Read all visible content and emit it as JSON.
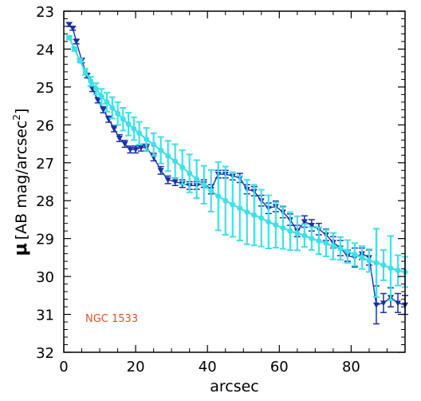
{
  "chart_data": {
    "type": "line",
    "xlabel": "arcsec",
    "ylabel_symbol": "μ",
    "ylabel_text": "[AB mag/arcsec",
    "ylabel_sup": "2",
    "ylabel_close": "]",
    "xlim": [
      0,
      95
    ],
    "ylim": [
      32,
      23
    ],
    "inverted_y": true,
    "grid": false,
    "annotation": "NGC 1533",
    "xticks": [
      0,
      20,
      40,
      60,
      80
    ],
    "yticks": [
      23,
      24,
      25,
      26,
      27,
      28,
      29,
      30,
      31,
      32
    ],
    "colors": {
      "observed": "#1a2fa8",
      "model": "#3fe0e6",
      "annotation": "#e8502a",
      "axis": "#000000"
    },
    "series": [
      {
        "key": "observed",
        "x": [
          1.5,
          2.5,
          3.5,
          5,
          6.5,
          8,
          9.5,
          11,
          12.5,
          14,
          15.5,
          17,
          18.5,
          20,
          21.5,
          23,
          25,
          27,
          29,
          31,
          33,
          35,
          37,
          39,
          41,
          43,
          45,
          47,
          49,
          51,
          53,
          55,
          57,
          59,
          61,
          63,
          65,
          67,
          69,
          71,
          73,
          75,
          77,
          79,
          81,
          83,
          85,
          87,
          89,
          91,
          93,
          95
        ],
        "y": [
          23.35,
          23.45,
          23.8,
          24.3,
          24.7,
          25.05,
          25.35,
          25.6,
          25.85,
          26.1,
          26.35,
          26.5,
          26.65,
          26.65,
          26.6,
          26.6,
          26.85,
          27.2,
          27.45,
          27.5,
          27.55,
          27.6,
          27.6,
          27.55,
          27.7,
          27.3,
          27.3,
          27.35,
          27.4,
          27.7,
          27.75,
          28,
          28.2,
          28.15,
          28.3,
          28.5,
          28.8,
          28.55,
          28.65,
          28.75,
          28.9,
          29.1,
          29.25,
          29.45,
          29.5,
          29.4,
          29.5,
          30.75,
          30.7,
          30.55,
          30.7,
          30.75
        ],
        "err": [
          0.05,
          0.05,
          0.06,
          0.06,
          0.06,
          0.07,
          0.07,
          0.08,
          0.08,
          0.08,
          0.09,
          0.09,
          0.09,
          0.09,
          0.09,
          0.09,
          0.1,
          0.1,
          0.1,
          0.1,
          0.1,
          0.1,
          0.1,
          0.1,
          0.12,
          0.1,
          0.1,
          0.1,
          0.12,
          0.12,
          0.12,
          0.14,
          0.14,
          0.14,
          0.15,
          0.15,
          0.15,
          0.15,
          0.15,
          0.15,
          0.15,
          0.15,
          0.2,
          0.15,
          0.25,
          0.15,
          0.2,
          0.5,
          0.25,
          0.25,
          0.25,
          0.25
        ]
      },
      {
        "key": "model",
        "x": [
          1.5,
          3,
          4.5,
          6,
          7.5,
          9,
          10.5,
          12,
          13.5,
          15,
          16.5,
          18,
          19.5,
          21,
          23,
          25,
          27,
          29,
          31,
          33,
          35,
          37,
          39,
          41,
          43,
          45,
          47,
          49,
          51,
          53,
          55,
          57,
          59,
          61,
          63,
          65,
          67,
          69,
          71,
          73,
          75,
          77,
          79,
          81,
          83,
          85,
          87,
          89,
          91,
          93,
          95
        ],
        "y": [
          23.7,
          24.0,
          24.3,
          24.6,
          24.85,
          25.05,
          25.25,
          25.4,
          25.55,
          25.7,
          25.85,
          25.98,
          26.1,
          26.22,
          26.38,
          26.52,
          26.67,
          26.82,
          26.96,
          27.12,
          27.28,
          27.43,
          27.58,
          27.74,
          27.88,
          28.0,
          28.1,
          28.2,
          28.3,
          28.38,
          28.46,
          28.56,
          28.64,
          28.72,
          28.8,
          28.86,
          28.92,
          29.0,
          29.06,
          29.12,
          29.2,
          29.26,
          29.34,
          29.42,
          29.5,
          29.58,
          29.64,
          29.7,
          29.78,
          29.84,
          29.88
        ],
        "err": [
          0.05,
          0.05,
          0.05,
          0.08,
          0.12,
          0.15,
          0.2,
          0.25,
          0.28,
          0.3,
          0.3,
          0.3,
          0.3,
          0.3,
          0.3,
          0.3,
          0.35,
          0.4,
          0.45,
          0.45,
          0.5,
          0.5,
          0.5,
          0.55,
          0.9,
          0.9,
          0.85,
          0.85,
          0.85,
          0.8,
          0.75,
          0.7,
          0.6,
          0.55,
          0.5,
          0.45,
          0.3,
          0.3,
          0.35,
          0.35,
          0.35,
          0.3,
          0.3,
          0.3,
          0.3,
          0.3,
          0.9,
          0.4,
          0.85,
          0.4,
          0.4
        ]
      }
    ]
  }
}
